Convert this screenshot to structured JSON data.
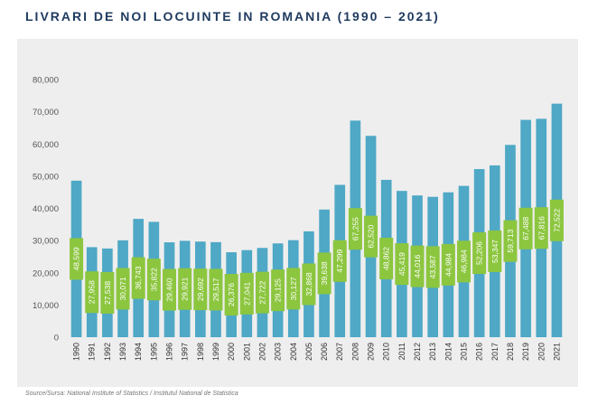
{
  "header": {
    "title": "LIVRARI DE NOI LOCUINTE IN ROMANIA (1990 – 2021)"
  },
  "footer": {
    "source": "Source/Sursa: National Institute of Statistics / Institutul National de Statistica"
  },
  "colors": {
    "bar": "#4ea8c6",
    "label_box": "#8cc63f",
    "panel": "#eeeeee",
    "title": "#1f3a5f"
  },
  "chart_data": {
    "type": "bar",
    "title": "LIVRARI DE NOI LOCUINTE IN ROMANIA (1990 – 2021)",
    "xlabel": "",
    "ylabel": "",
    "ylim": [
      0,
      80000
    ],
    "yticks": [
      0,
      10000,
      20000,
      30000,
      40000,
      50000,
      60000,
      70000,
      80000
    ],
    "ytick_labels": [
      "0",
      "10,000",
      "20,000",
      "30,000",
      "40,000",
      "50,000",
      "60,000",
      "70,000",
      "80,000"
    ],
    "grid": false,
    "legend": "none",
    "categories": [
      "1990",
      "1991",
      "1992",
      "1993",
      "1994",
      "1995",
      "1996",
      "1997",
      "1998",
      "1999",
      "2000",
      "2001",
      "2002",
      "2003",
      "2004",
      "2005",
      "2006",
      "2007",
      "2008",
      "2009",
      "2010",
      "2011",
      "2012",
      "2013",
      "2014",
      "2015",
      "2016",
      "2017",
      "2018",
      "2019",
      "2020",
      "2021"
    ],
    "values": [
      48599,
      27958,
      27538,
      30071,
      36743,
      35822,
      29460,
      29921,
      29692,
      29517,
      26376,
      27041,
      27722,
      29125,
      30127,
      32868,
      39638,
      47299,
      67255,
      62520,
      48862,
      45419,
      44016,
      43587,
      44984,
      46984,
      52206,
      53347,
      59713,
      67488,
      67816,
      72522
    ],
    "value_labels": [
      "48,599",
      "27,958",
      "27,538",
      "30,071",
      "36,743",
      "35,822",
      "29,460",
      "29,921",
      "29,692",
      "29,517",
      "26,376",
      "27,041",
      "27,722",
      "29,125",
      "30,127",
      "32,868",
      "39,638",
      "47,299",
      "67,255",
      "62,520",
      "48,862",
      "45,419",
      "44,016",
      "43,587",
      "44,984",
      "46,984",
      "52,206",
      "53,347",
      "59,713",
      "67,488",
      "67,816",
      "72,522"
    ]
  }
}
